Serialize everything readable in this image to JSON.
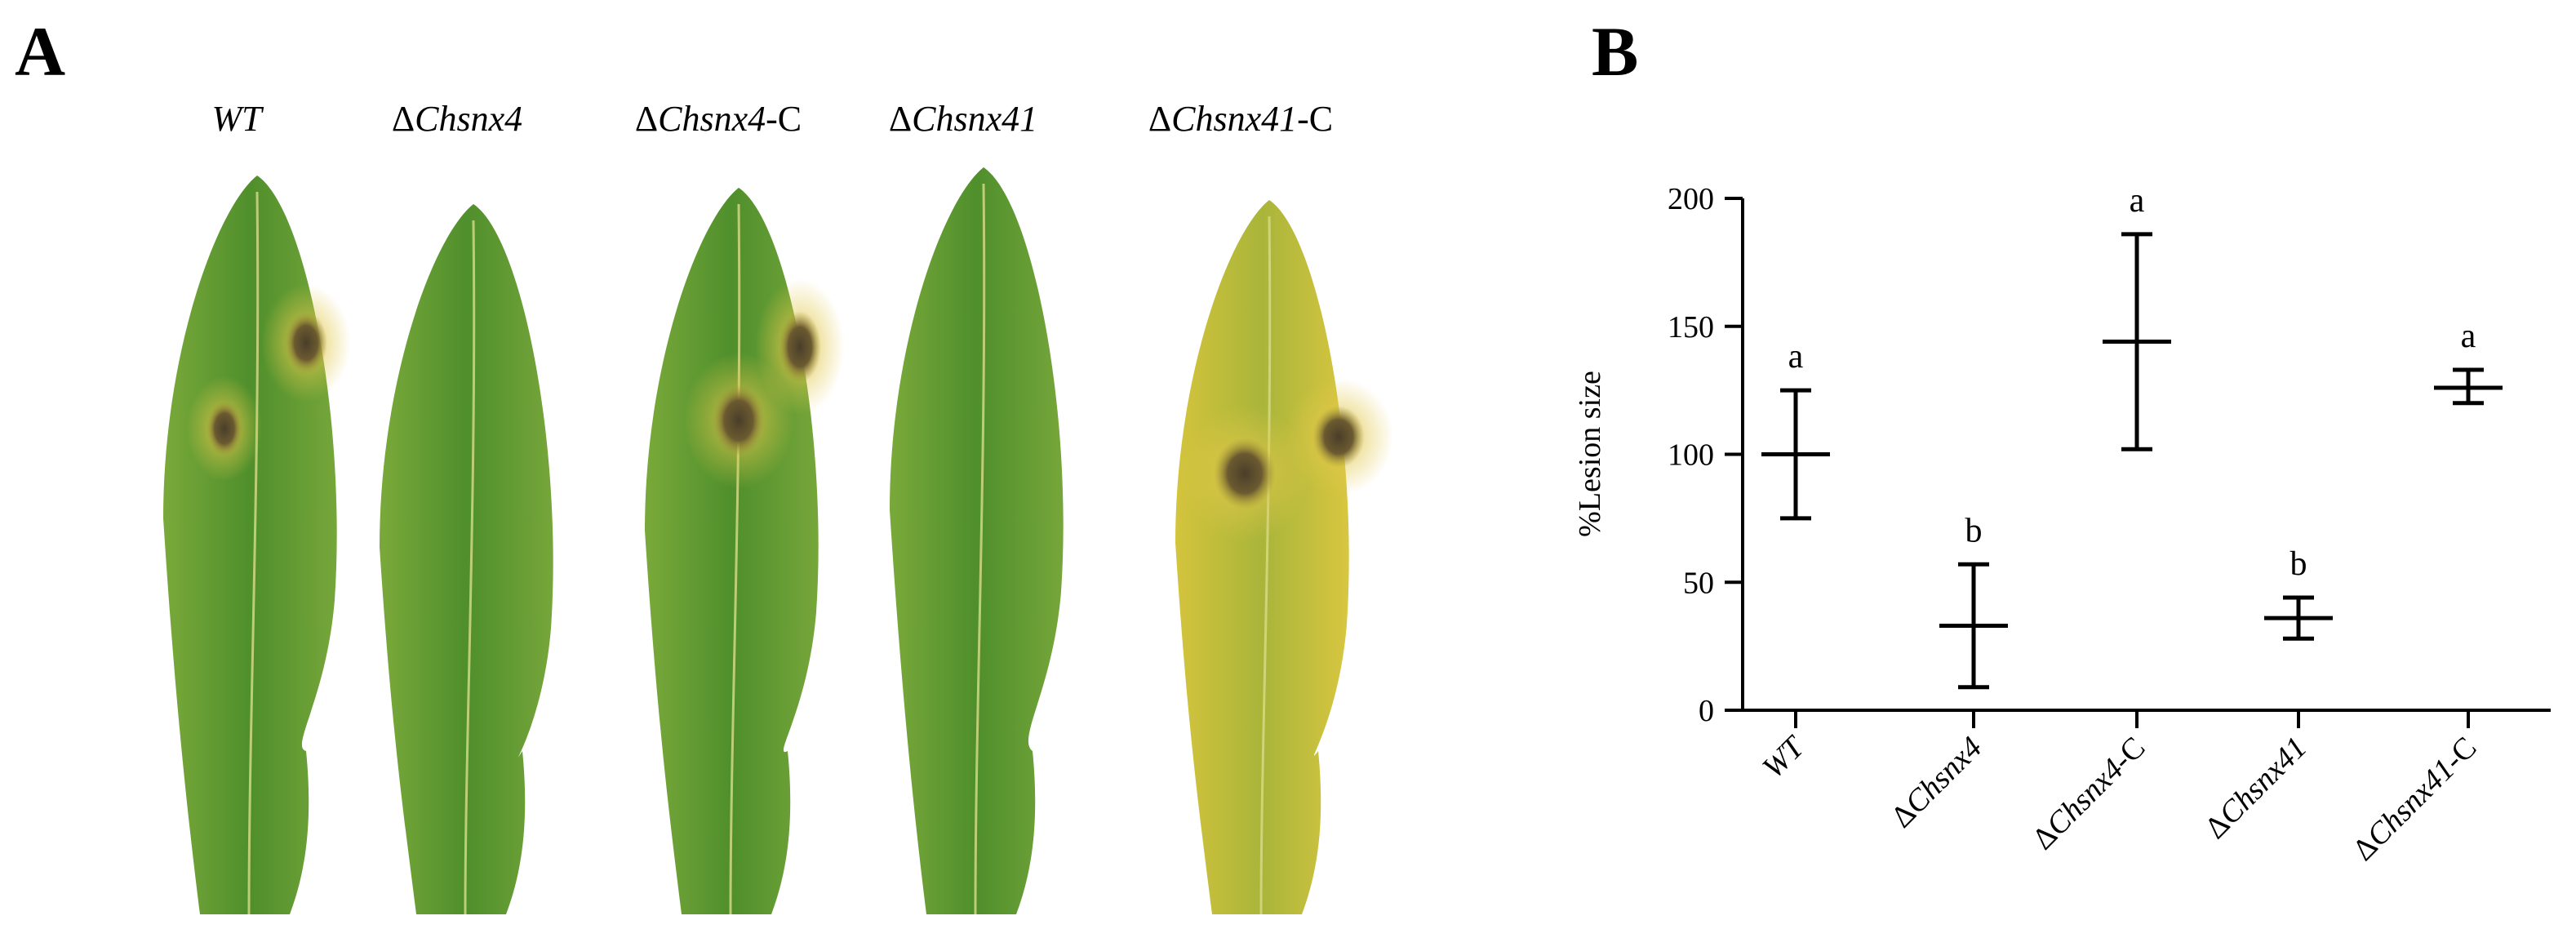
{
  "panels": {
    "a_label": "A",
    "b_label": "B"
  },
  "photo": {
    "strains": [
      {
        "delta": "",
        "name": "WT",
        "suffix": ""
      },
      {
        "delta": "Δ",
        "name": "Chsnx4",
        "suffix": ""
      },
      {
        "delta": "Δ",
        "name": "Chsnx4",
        "suffix": "-C"
      },
      {
        "delta": "Δ",
        "name": "Chsnx41",
        "suffix": ""
      },
      {
        "delta": "Δ",
        "name": "Chsnx41",
        "suffix": "-C"
      }
    ],
    "leaf_colors": {
      "green": "#5c9a34",
      "yellow": "#c9c23a",
      "lesion": "#5a4a2a"
    }
  },
  "chart_data": {
    "type": "scatter",
    "title": "",
    "xlabel": "",
    "ylabel": "%Lesion size",
    "ylim": [
      0,
      200
    ],
    "yticks": [
      0,
      50,
      100,
      150,
      200
    ],
    "grid": false,
    "categories": [
      {
        "delta": "",
        "name": "WT",
        "suffix": ""
      },
      {
        "delta": "Δ",
        "name": "Chsnx4",
        "suffix": ""
      },
      {
        "delta": "Δ",
        "name": "Chsnx4",
        "suffix": "-C"
      },
      {
        "delta": "Δ",
        "name": "Chsnx41",
        "suffix": ""
      },
      {
        "delta": "Δ",
        "name": "Chsnx41",
        "suffix": "-C"
      }
    ],
    "mean": [
      100,
      33,
      144,
      36,
      126
    ],
    "error_low": [
      75,
      9,
      102,
      28,
      120
    ],
    "error_high": [
      125,
      57,
      186,
      44,
      133
    ],
    "significance": [
      "a",
      "b",
      "a",
      "b",
      "a"
    ]
  }
}
